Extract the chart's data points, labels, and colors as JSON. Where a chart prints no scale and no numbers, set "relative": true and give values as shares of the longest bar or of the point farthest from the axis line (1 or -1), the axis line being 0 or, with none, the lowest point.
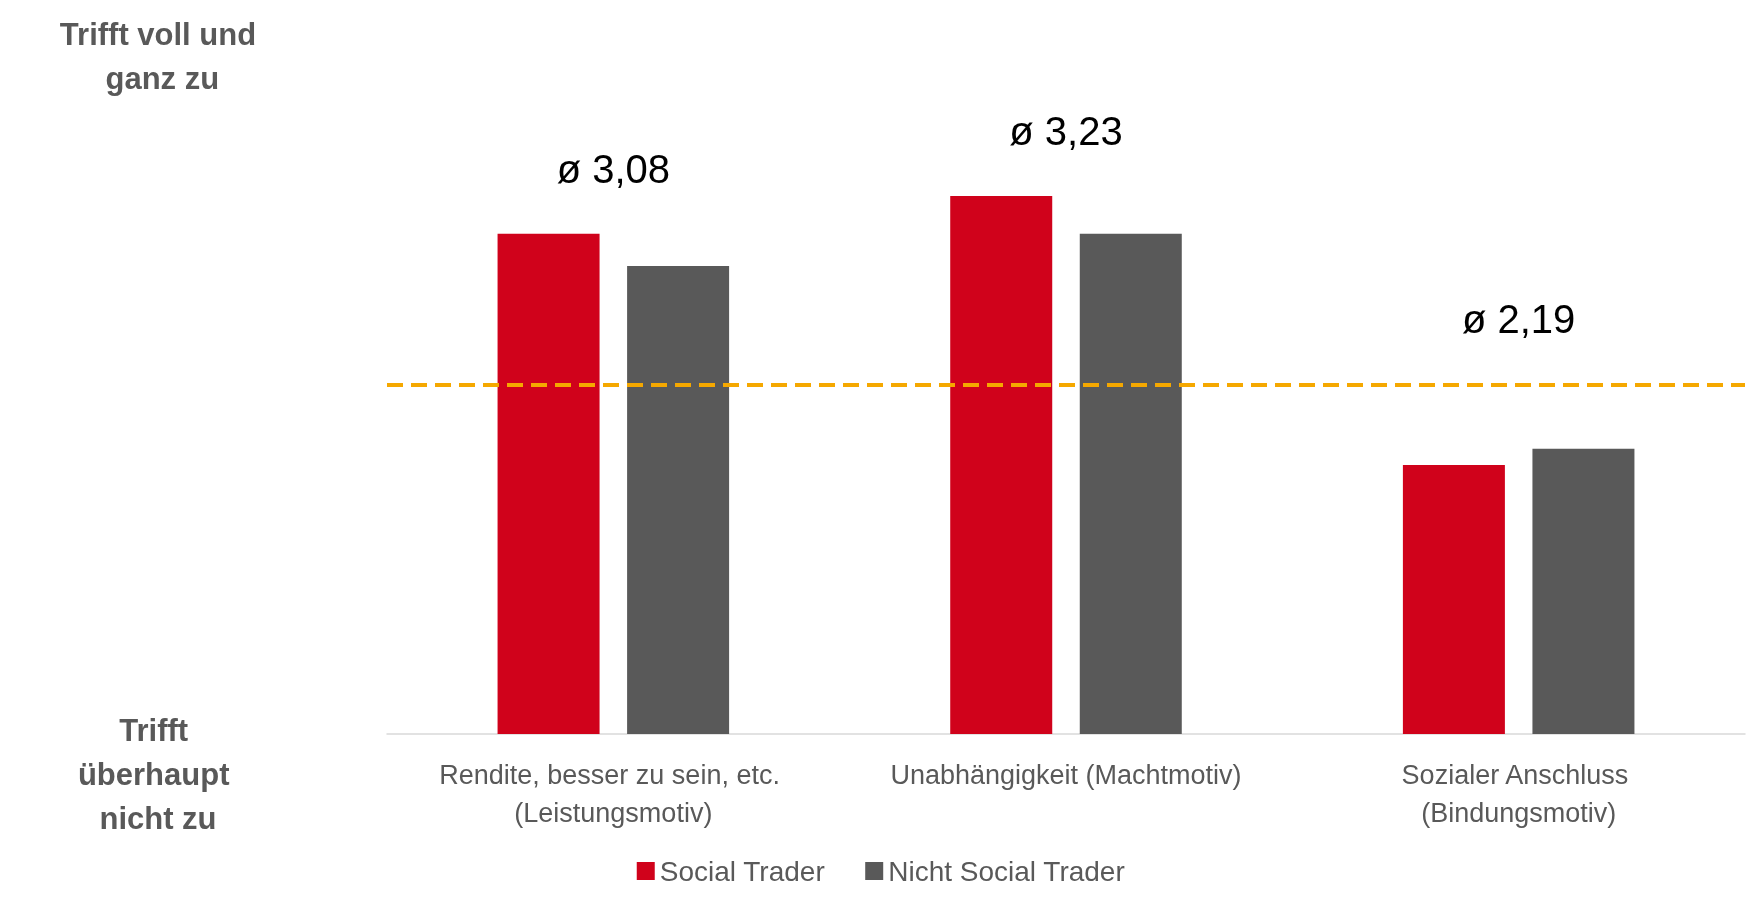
{
  "chart_data": {
    "type": "bar",
    "relative": true,
    "categories": [
      "Rendite, besser zu sein, etc. (Leistungsmotiv)",
      "Unabhängigkeit (Machtmotiv)",
      "Sozialer Anschluss (Bindungsmotiv)"
    ],
    "series": [
      {
        "name": "Social Trader",
        "color": "#d0021b",
        "values": [
          0.93,
          1,
          0.5
        ]
      },
      {
        "name": "Nicht Social Trader",
        "color": "#595959",
        "values": [
          0.87,
          0.93,
          0.53
        ]
      }
    ],
    "ref_lines": [
      {
        "axis": "y",
        "value": 0.65,
        "label": null,
        "color": "#f5a800",
        "line_style": "dashed"
      }
    ],
    "annotations": [
      "ø 3,08",
      "ø 3,23",
      "ø 2,19",
      "Trifft voll und ganz zu",
      "Trifft überhaupt nicht zu"
    ],
    "legend": "bottom"
  }
}
